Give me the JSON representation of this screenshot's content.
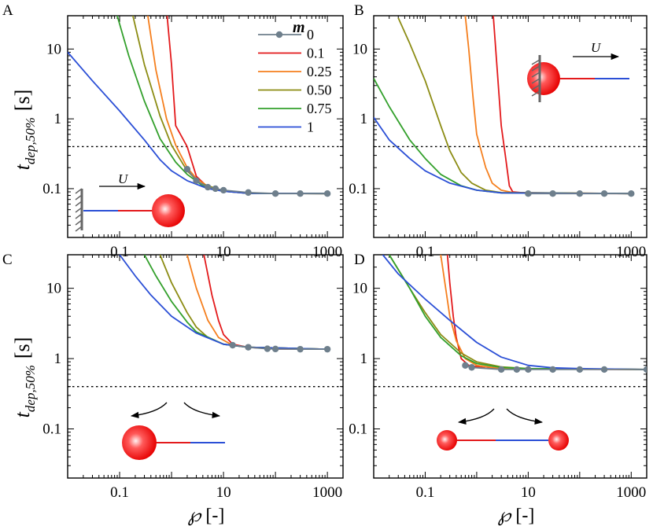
{
  "figure": {
    "y_axis_label_main": "t",
    "y_axis_label_sub": "dep,50%",
    "y_axis_unit": "[s]",
    "x_axis_symbol": "℘",
    "x_axis_unit": "[-]"
  },
  "legend": {
    "title": "m",
    "entries": [
      {
        "label": "0",
        "color": "#6e7f8c"
      },
      {
        "label": "0.1",
        "color": "#e31a1c"
      },
      {
        "label": "0.25",
        "color": "#f57f1e"
      },
      {
        "label": "0.50",
        "color": "#8c8c14"
      },
      {
        "label": "0.75",
        "color": "#33a02c"
      },
      {
        "label": "1",
        "color": "#2b4fd6"
      }
    ]
  },
  "annotations": {
    "velocity_label": "U"
  },
  "chart_data": [
    {
      "type": "line",
      "panel": "A",
      "xscale": "log",
      "yscale": "log",
      "xlim": [
        0.01,
        2000
      ],
      "ylim": [
        0.02,
        30
      ],
      "x_ticks": [
        "0.1",
        "10",
        "1000"
      ],
      "y_ticks": [
        "0.1",
        "1",
        "10"
      ],
      "reference_line_y": 0.4,
      "series": [
        {
          "m": "0",
          "markers": true,
          "points": [
            [
              2,
              0.19
            ],
            [
              3,
              0.13
            ],
            [
              5,
              0.105
            ],
            [
              7,
              0.1
            ],
            [
              10,
              0.095
            ],
            [
              30,
              0.088
            ],
            [
              100,
              0.085
            ],
            [
              300,
              0.085
            ],
            [
              1000,
              0.085
            ]
          ]
        },
        {
          "m": "0.1",
          "points": [
            [
              0.82,
              30
            ],
            [
              1.0,
              6
            ],
            [
              1.2,
              0.8
            ],
            [
              2.0,
              0.4
            ],
            [
              3.0,
              0.15
            ],
            [
              5.0,
              0.105
            ],
            [
              10,
              0.092
            ],
            [
              30,
              0.086
            ],
            [
              1000,
              0.085
            ]
          ]
        },
        {
          "m": "0.25",
          "points": [
            [
              0.35,
              30
            ],
            [
              0.5,
              5
            ],
            [
              0.8,
              1.0
            ],
            [
              1.2,
              0.42
            ],
            [
              2.0,
              0.2
            ],
            [
              3.0,
              0.14
            ],
            [
              5.0,
              0.108
            ],
            [
              10,
              0.093
            ],
            [
              30,
              0.086
            ],
            [
              1000,
              0.085
            ]
          ]
        },
        {
          "m": "0.50",
          "points": [
            [
              0.18,
              30
            ],
            [
              0.3,
              6
            ],
            [
              0.6,
              1.1
            ],
            [
              1.0,
              0.42
            ],
            [
              2.0,
              0.18
            ],
            [
              3.5,
              0.12
            ],
            [
              10,
              0.093
            ],
            [
              30,
              0.086
            ],
            [
              1000,
              0.085
            ]
          ]
        },
        {
          "m": "0.75",
          "points": [
            [
              0.09,
              30
            ],
            [
              0.15,
              8
            ],
            [
              0.3,
              1.8
            ],
            [
              0.6,
              0.52
            ],
            [
              1.2,
              0.24
            ],
            [
              2.0,
              0.16
            ],
            [
              4.0,
              0.11
            ],
            [
              10,
              0.092
            ],
            [
              30,
              0.086
            ],
            [
              1000,
              0.085
            ]
          ]
        },
        {
          "m": "1",
          "points": [
            [
              0.01,
              9
            ],
            [
              0.03,
              3.5
            ],
            [
              0.1,
              1.3
            ],
            [
              0.3,
              0.5
            ],
            [
              0.6,
              0.26
            ],
            [
              1.0,
              0.18
            ],
            [
              2.0,
              0.13
            ],
            [
              5.0,
              0.1
            ],
            [
              10,
              0.092
            ],
            [
              30,
              0.086
            ],
            [
              1000,
              0.085
            ]
          ]
        }
      ]
    },
    {
      "type": "line",
      "panel": "B",
      "xscale": "log",
      "yscale": "log",
      "xlim": [
        0.01,
        2000
      ],
      "ylim": [
        0.02,
        30
      ],
      "x_ticks": [
        "0.1",
        "10",
        "1000"
      ],
      "y_ticks": [
        "0.1",
        "1",
        "10"
      ],
      "reference_line_y": 0.4,
      "series": [
        {
          "m": "0",
          "markers": true,
          "points": [
            [
              10,
              0.085
            ],
            [
              30,
              0.085
            ],
            [
              100,
              0.085
            ],
            [
              300,
              0.085
            ],
            [
              1000,
              0.085
            ]
          ]
        },
        {
          "m": "0.1",
          "points": [
            [
              2.1,
              30
            ],
            [
              2.5,
              5
            ],
            [
              3.0,
              0.8
            ],
            [
              3.6,
              0.3
            ],
            [
              4.3,
              0.11
            ],
            [
              5.0,
              0.09
            ],
            [
              10,
              0.086
            ],
            [
              1000,
              0.085
            ]
          ]
        },
        {
          "m": "0.25",
          "points": [
            [
              0.6,
              30
            ],
            [
              0.7,
              10
            ],
            [
              0.85,
              2
            ],
            [
              1.0,
              0.6
            ],
            [
              1.5,
              0.2
            ],
            [
              2.0,
              0.12
            ],
            [
              3.0,
              0.095
            ],
            [
              5.0,
              0.088
            ],
            [
              1000,
              0.085
            ]
          ]
        },
        {
          "m": "0.50",
          "points": [
            [
              0.03,
              28
            ],
            [
              0.05,
              12
            ],
            [
              0.1,
              3.5
            ],
            [
              0.2,
              0.8
            ],
            [
              0.3,
              0.35
            ],
            [
              0.5,
              0.17
            ],
            [
              0.8,
              0.12
            ],
            [
              1.5,
              0.095
            ],
            [
              3.0,
              0.088
            ],
            [
              1000,
              0.085
            ]
          ]
        },
        {
          "m": "0.75",
          "points": [
            [
              0.01,
              3.8
            ],
            [
              0.02,
              1.5
            ],
            [
              0.05,
              0.5
            ],
            [
              0.1,
              0.27
            ],
            [
              0.2,
              0.16
            ],
            [
              0.5,
              0.11
            ],
            [
              1.0,
              0.095
            ],
            [
              3.0,
              0.087
            ],
            [
              1000,
              0.085
            ]
          ]
        },
        {
          "m": "1",
          "points": [
            [
              0.01,
              1.05
            ],
            [
              0.02,
              0.5
            ],
            [
              0.05,
              0.27
            ],
            [
              0.1,
              0.18
            ],
            [
              0.3,
              0.12
            ],
            [
              1.0,
              0.095
            ],
            [
              3.0,
              0.087
            ],
            [
              1000,
              0.085
            ]
          ]
        }
      ]
    },
    {
      "type": "line",
      "panel": "C",
      "xscale": "log",
      "yscale": "log",
      "xlim": [
        0.01,
        2000
      ],
      "ylim": [
        0.02,
        30
      ],
      "x_ticks": [
        "0.1",
        "10",
        "1000"
      ],
      "y_ticks": [
        "0.1",
        "1",
        "10"
      ],
      "reference_line_y": 0.4,
      "series": [
        {
          "m": "0",
          "markers": true,
          "points": [
            [
              15,
              1.55
            ],
            [
              30,
              1.45
            ],
            [
              70,
              1.38
            ],
            [
              100,
              1.37
            ],
            [
              300,
              1.36
            ],
            [
              1000,
              1.36
            ]
          ]
        },
        {
          "m": "0.1",
          "points": [
            [
              4.2,
              30
            ],
            [
              6.0,
              8
            ],
            [
              8.0,
              3.5
            ],
            [
              10,
              2.2
            ],
            [
              15,
              1.6
            ],
            [
              30,
              1.45
            ],
            [
              100,
              1.37
            ],
            [
              1000,
              1.36
            ]
          ]
        },
        {
          "m": "0.25",
          "points": [
            [
              2.0,
              30
            ],
            [
              3.0,
              10
            ],
            [
              5.0,
              3.5
            ],
            [
              8.0,
              2.0
            ],
            [
              15,
              1.55
            ],
            [
              30,
              1.45
            ],
            [
              1000,
              1.36
            ]
          ]
        },
        {
          "m": "0.50",
          "points": [
            [
              0.6,
              30
            ],
            [
              1.0,
              12
            ],
            [
              2.0,
              4.5
            ],
            [
              3.0,
              2.8
            ],
            [
              5.0,
              2.0
            ],
            [
              10,
              1.6
            ],
            [
              30,
              1.45
            ],
            [
              1000,
              1.36
            ]
          ]
        },
        {
          "m": "0.75",
          "points": [
            [
              0.3,
              30
            ],
            [
              0.5,
              15
            ],
            [
              1.0,
              6.5
            ],
            [
              2.0,
              3.3
            ],
            [
              3.0,
              2.4
            ],
            [
              10,
              1.6
            ],
            [
              30,
              1.45
            ],
            [
              1000,
              1.36
            ]
          ]
        },
        {
          "m": "1",
          "points": [
            [
              0.1,
              30
            ],
            [
              0.2,
              15
            ],
            [
              0.4,
              8
            ],
            [
              1.0,
              4
            ],
            [
              3.0,
              2.3
            ],
            [
              10,
              1.6
            ],
            [
              30,
              1.45
            ],
            [
              1000,
              1.36
            ]
          ]
        }
      ]
    },
    {
      "type": "line",
      "panel": "D",
      "xscale": "log",
      "yscale": "log",
      "xlim": [
        0.01,
        2000
      ],
      "ylim": [
        0.02,
        30
      ],
      "x_ticks": [
        "0.1",
        "10",
        "1000"
      ],
      "y_ticks": [
        "0.1",
        "1",
        "10"
      ],
      "reference_line_y": 0.4,
      "series": [
        {
          "m": "0",
          "markers": true,
          "points": [
            [
              0.6,
              0.8
            ],
            [
              0.8,
              0.75
            ],
            [
              3.0,
              0.7
            ],
            [
              6.0,
              0.7
            ],
            [
              10,
              0.7
            ],
            [
              30,
              0.7
            ],
            [
              100,
              0.7
            ],
            [
              300,
              0.7
            ],
            [
              2000,
              0.7
            ]
          ]
        },
        {
          "m": "0.1",
          "points": [
            [
              0.27,
              30
            ],
            [
              0.3,
              12
            ],
            [
              0.35,
              4
            ],
            [
              0.4,
              2
            ],
            [
              0.5,
              1.0
            ],
            [
              0.7,
              0.8
            ],
            [
              1.5,
              0.73
            ],
            [
              5.0,
              0.71
            ],
            [
              2000,
              0.7
            ]
          ]
        },
        {
          "m": "0.25",
          "points": [
            [
              0.2,
              30
            ],
            [
              0.25,
              10
            ],
            [
              0.3,
              4
            ],
            [
              0.4,
              1.8
            ],
            [
              0.6,
              1.0
            ],
            [
              1.0,
              0.8
            ],
            [
              3.0,
              0.72
            ],
            [
              2000,
              0.7
            ]
          ]
        },
        {
          "m": "0.50",
          "points": [
            [
              0.02,
              30
            ],
            [
              0.05,
              10
            ],
            [
              0.1,
              4.5
            ],
            [
              0.2,
              2.2
            ],
            [
              0.5,
              1.2
            ],
            [
              1.0,
              0.9
            ],
            [
              3.0,
              0.76
            ],
            [
              10,
              0.72
            ],
            [
              2000,
              0.7
            ]
          ]
        },
        {
          "m": "0.75",
          "points": [
            [
              0.02,
              30
            ],
            [
              0.05,
              10
            ],
            [
              0.1,
              4
            ],
            [
              0.2,
              2.0
            ],
            [
              0.5,
              1.1
            ],
            [
              1.0,
              0.85
            ],
            [
              3.0,
              0.75
            ],
            [
              10,
              0.72
            ],
            [
              2000,
              0.7
            ]
          ]
        },
        {
          "m": "1",
          "points": [
            [
              0.015,
              30
            ],
            [
              0.03,
              16
            ],
            [
              0.1,
              7
            ],
            [
              0.3,
              3.5
            ],
            [
              1.0,
              1.7
            ],
            [
              3.0,
              1.05
            ],
            [
              10,
              0.8
            ],
            [
              30,
              0.74
            ],
            [
              100,
              0.72
            ],
            [
              2000,
              0.7
            ]
          ]
        }
      ]
    }
  ]
}
